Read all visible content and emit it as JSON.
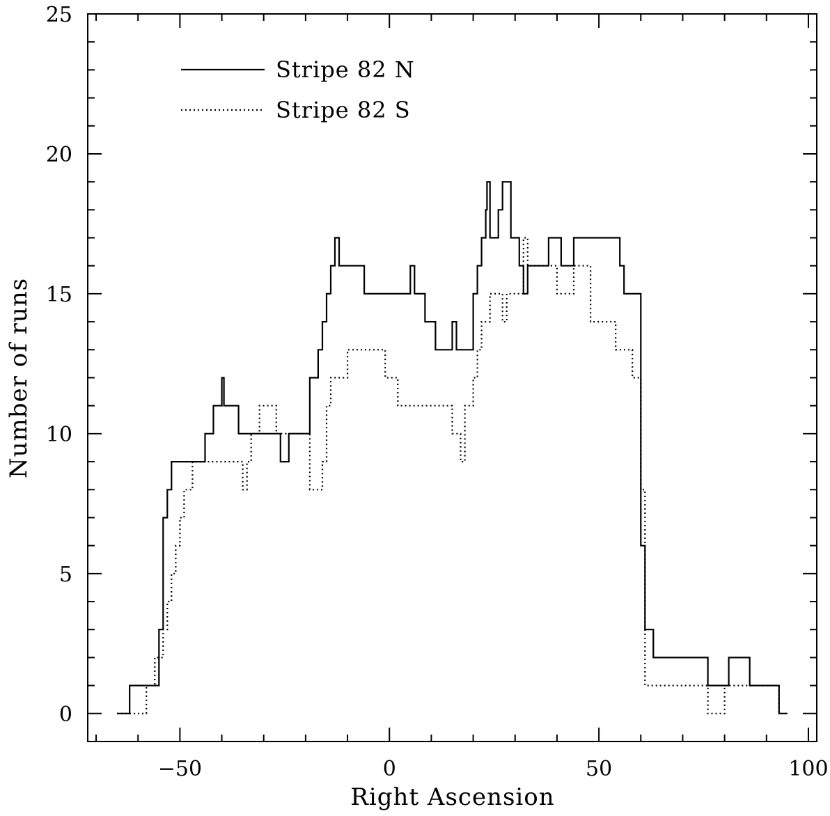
{
  "chart_data": {
    "type": "line",
    "title": "",
    "xlabel": "Right Ascension",
    "ylabel": "Number of runs",
    "xlim": [
      -72,
      102
    ],
    "ylim": [
      -1,
      25
    ],
    "x_ticks": [
      -50,
      0,
      50,
      100
    ],
    "x_tick_labels": [
      "−50",
      "0",
      "50",
      "100"
    ],
    "y_ticks": [
      0,
      5,
      10,
      15,
      20,
      25
    ],
    "y_tick_labels": [
      "0",
      "5",
      "10",
      "15",
      "20",
      "25"
    ],
    "grid": false,
    "legend_position": "top-left",
    "series": [
      {
        "name": "Stripe 82 N",
        "style": "solid",
        "color": "#000000",
        "x": [
          -65,
          -62,
          -55,
          -54,
          -53,
          -52,
          -50,
          -44,
          -42,
          -40,
          -39.5,
          -39,
          -36,
          -35,
          -33,
          -30,
          -26,
          -24,
          -19,
          -17,
          -16,
          -15,
          -14,
          -13,
          -12,
          -11,
          -6,
          0,
          5,
          6,
          7,
          8.5,
          9,
          11,
          15,
          16,
          20,
          21,
          22,
          23,
          23.3,
          24,
          26,
          27,
          29,
          31,
          32,
          33,
          35,
          38,
          41,
          44,
          55,
          56,
          60,
          61,
          63,
          76,
          81,
          86,
          93,
          95
        ],
        "y": [
          0,
          1,
          3,
          7,
          8,
          9,
          9,
          10,
          11,
          12,
          11,
          11,
          10,
          10,
          10,
          10,
          9,
          10,
          12,
          13,
          14,
          15,
          16,
          17,
          16,
          16,
          15,
          15,
          16,
          15,
          15,
          14,
          14,
          13,
          14,
          13,
          15,
          16,
          17,
          18,
          19,
          17,
          18,
          19,
          17,
          16,
          15,
          16,
          16,
          17,
          16,
          17,
          16,
          15,
          6,
          3,
          2,
          1,
          2,
          1,
          0,
          0
        ]
      },
      {
        "name": "Stripe 82 S",
        "style": "dotted",
        "color": "#000000",
        "x": [
          -65,
          -61,
          -58,
          -56,
          -54,
          -53,
          -52,
          -51,
          -50,
          -49,
          -48,
          -47,
          -46,
          -45,
          -42,
          -40,
          -36,
          -35,
          -34,
          -33,
          -31,
          -29,
          -27,
          -24,
          -19,
          -16,
          -15,
          -14,
          -13,
          -12,
          -10,
          -5,
          -1,
          0,
          2,
          12,
          15,
          16,
          17,
          18,
          20,
          21,
          22,
          23,
          24,
          27,
          28,
          30,
          32,
          33,
          35,
          40,
          42,
          44,
          48,
          51,
          54,
          56,
          58,
          60,
          61,
          63,
          76,
          80,
          86,
          93,
          95
        ],
        "y": [
          0,
          0,
          1,
          2,
          3,
          4,
          5,
          6,
          7,
          8,
          8,
          9,
          9,
          9,
          9,
          9,
          9,
          8,
          9,
          10,
          11,
          11,
          10,
          10,
          8,
          9,
          11,
          12,
          12,
          12,
          13,
          13,
          12,
          12,
          11,
          11,
          10,
          10,
          9,
          11,
          12,
          13,
          14,
          14,
          15,
          14,
          15,
          15,
          17,
          16,
          16,
          15,
          15,
          16,
          14,
          14,
          13,
          13,
          12,
          8,
          1,
          1,
          0,
          1,
          1,
          0,
          0
        ]
      }
    ]
  }
}
